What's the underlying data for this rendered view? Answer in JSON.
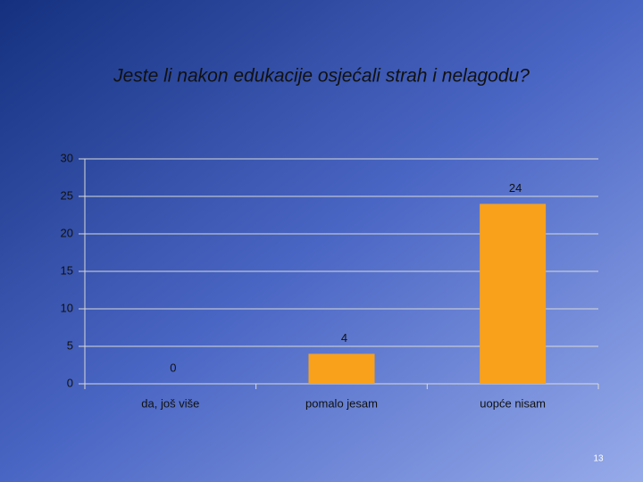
{
  "chart_data": {
    "type": "bar",
    "title": "Jeste li nakon edukacije osjećali strah i nelagodu?",
    "categories": [
      "da, još više",
      "pomalo jesam",
      "uopće nisam"
    ],
    "values": [
      0,
      4,
      24
    ],
    "color": "#f9a11b",
    "ylim": [
      0,
      30
    ],
    "yticks": [
      0,
      5,
      10,
      15,
      20,
      25,
      30
    ],
    "grid": true
  },
  "slide_number": "13"
}
